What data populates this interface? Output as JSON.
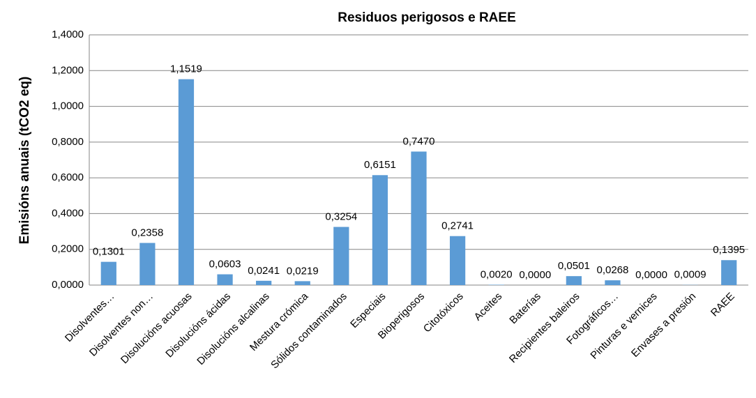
{
  "chart_data": {
    "type": "bar",
    "title": "Residuos perigosos e RAEE",
    "y_axis_label": "Emisións anuais (tCO2 eq)",
    "categories": [
      "Disolventes…",
      "Disolventes non…",
      "Disolucións acuosas",
      "Disolucións ácidas",
      "Disolucións alcalinas",
      "Mestura crómica",
      "Sólidos contaminados",
      "Especiais",
      "Bioperigosos",
      "Citotóxicos",
      "Aceites",
      "Baterías",
      "Recipientes baleiros",
      "Fotográficos…",
      "Pinturas e vernices",
      "Envases a presión",
      "RAEE"
    ],
    "values": [
      0.1301,
      0.2358,
      1.1519,
      0.0603,
      0.0241,
      0.0219,
      0.3254,
      0.6151,
      0.747,
      0.2741,
      0.002,
      0.0,
      0.0501,
      0.0268,
      0.0,
      0.0009,
      0.1395
    ],
    "value_labels": [
      "0,1301",
      "0,2358",
      "1,1519",
      "0,0603",
      "0,0241",
      "0,0219",
      "0,3254",
      "0,6151",
      "0,7470",
      "0,2741",
      "0,0020",
      "0,0000",
      "0,0501",
      "0,0268",
      "0,0000",
      "0,0009",
      "0,1395"
    ],
    "color": "#5b9bd5",
    "ylim": [
      0,
      1.4
    ],
    "yticks": [
      {
        "value": 0,
        "label": "0,0000"
      },
      {
        "value": 0.2,
        "label": "0,2000"
      },
      {
        "value": 0.4,
        "label": "0,4000"
      },
      {
        "value": 0.6,
        "label": "0,6000"
      },
      {
        "value": 0.8,
        "label": "0,8000"
      },
      {
        "value": 1.0,
        "label": "1,0000"
      },
      {
        "value": 1.2,
        "label": "1,2000"
      },
      {
        "value": 1.4,
        "label": "1,4000"
      }
    ],
    "grid": true
  }
}
